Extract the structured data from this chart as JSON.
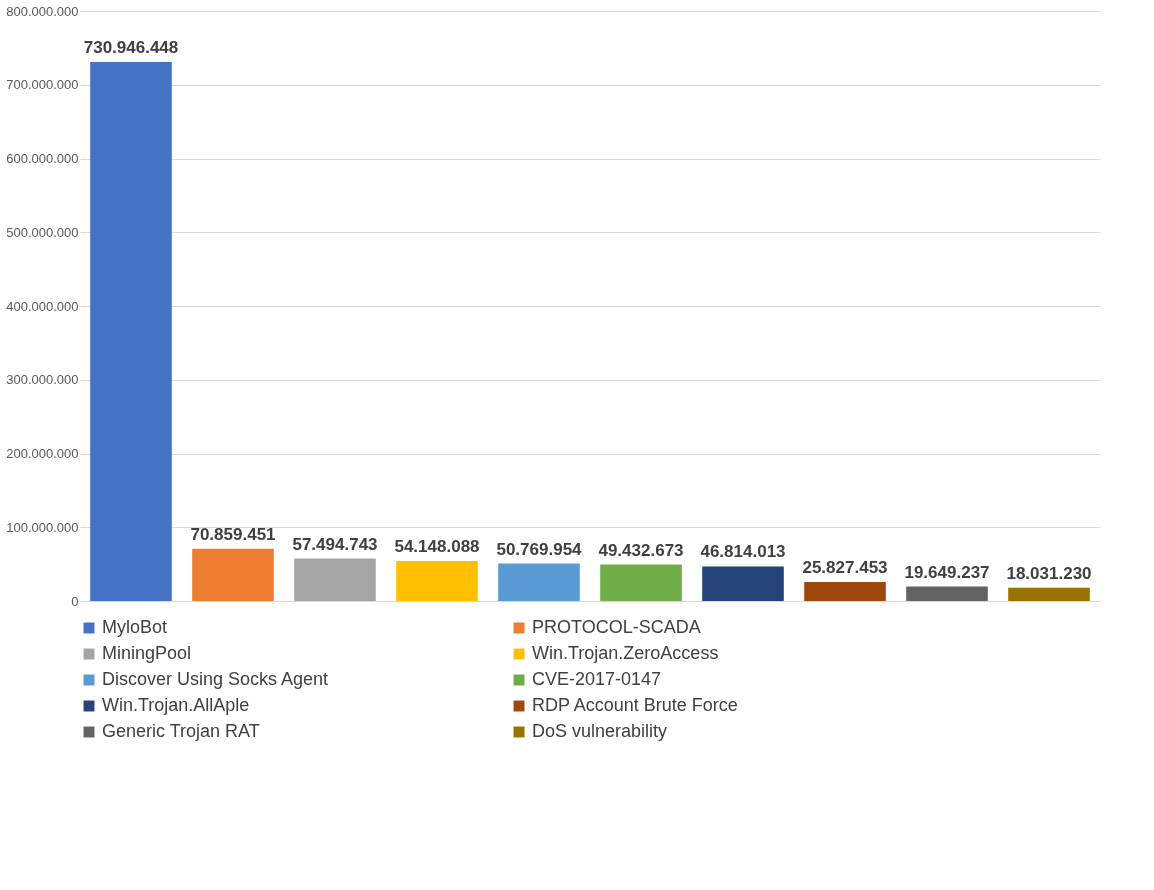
{
  "chart_data": {
    "type": "bar",
    "categories": [
      null,
      null,
      null,
      null,
      null,
      null,
      null,
      null,
      null,
      null
    ],
    "ylim": [
      0,
      800000000
    ],
    "yticks": [
      {
        "value": 0,
        "label": "0"
      },
      {
        "value": 100000000,
        "label": "100.000.000"
      },
      {
        "value": 200000000,
        "label": "200.000.000"
      },
      {
        "value": 300000000,
        "label": "300.000.000"
      },
      {
        "value": 400000000,
        "label": "400.000.000"
      },
      {
        "value": 500000000,
        "label": "500.000.000"
      },
      {
        "value": 600000000,
        "label": "600.000.000"
      },
      {
        "value": 700000000,
        "label": "700.000.000"
      },
      {
        "value": 800000000,
        "label": "800.000.000"
      }
    ],
    "grid": "y",
    "legend": "bottom",
    "tick_labels": "y",
    "series": [
      {
        "name": "MyloBot",
        "color": "#4472c4",
        "values": [
          730946448,
          null,
          null,
          null,
          null,
          null,
          null,
          null,
          null,
          null
        ],
        "value_labels": [
          "730.946.448",
          null,
          null,
          null,
          null,
          null,
          null,
          null,
          null,
          null
        ]
      },
      {
        "name": "PROTOCOL-SCADA",
        "color": "#ed7d31",
        "values": [
          null,
          70859451,
          null,
          null,
          null,
          null,
          null,
          null,
          null,
          null
        ],
        "value_labels": [
          null,
          "70.859.451",
          null,
          null,
          null,
          null,
          null,
          null,
          null,
          null
        ]
      },
      {
        "name": "MiningPool",
        "color": "#a5a5a5",
        "values": [
          null,
          null,
          57494743,
          null,
          null,
          null,
          null,
          null,
          null,
          null
        ],
        "value_labels": [
          null,
          null,
          "57.494.743",
          null,
          null,
          null,
          null,
          null,
          null,
          null
        ]
      },
      {
        "name": "Win.Trojan.ZeroAccess",
        "color": "#ffc000",
        "values": [
          null,
          null,
          null,
          54148088,
          null,
          null,
          null,
          null,
          null,
          null
        ],
        "value_labels": [
          null,
          null,
          null,
          "54.148.088",
          null,
          null,
          null,
          null,
          null,
          null
        ]
      },
      {
        "name": "Discover Using Socks Agent",
        "color": "#5b9bd5",
        "values": [
          null,
          null,
          null,
          null,
          50769954,
          null,
          null,
          null,
          null,
          null
        ],
        "value_labels": [
          null,
          null,
          null,
          null,
          "50.769.954",
          null,
          null,
          null,
          null,
          null
        ]
      },
      {
        "name": "CVE-2017-0147",
        "color": "#70ad47",
        "values": [
          null,
          null,
          null,
          null,
          null,
          49432673,
          null,
          null,
          null,
          null
        ],
        "value_labels": [
          null,
          null,
          null,
          null,
          null,
          "49.432.673",
          null,
          null,
          null,
          null
        ]
      },
      {
        "name": "Win.Trojan.AllAple",
        "color": "#264478",
        "values": [
          null,
          null,
          null,
          null,
          null,
          null,
          46814013,
          null,
          null,
          null
        ],
        "value_labels": [
          null,
          null,
          null,
          null,
          null,
          null,
          "46.814.013",
          null,
          null,
          null
        ]
      },
      {
        "name": "RDP Account Brute Force",
        "color": "#9e480e",
        "values": [
          null,
          null,
          null,
          null,
          null,
          null,
          null,
          25827453,
          null,
          null
        ],
        "value_labels": [
          null,
          null,
          null,
          null,
          null,
          null,
          null,
          "25.827.453",
          null,
          null
        ]
      },
      {
        "name": "Generic Trojan RAT",
        "color": "#636363",
        "values": [
          null,
          null,
          null,
          null,
          null,
          null,
          null,
          null,
          19649237,
          null
        ],
        "value_labels": [
          null,
          null,
          null,
          null,
          null,
          null,
          null,
          null,
          "19.649.237",
          null
        ]
      },
      {
        "name": "DoS vulnerability",
        "color": "#997300",
        "values": [
          null,
          null,
          null,
          null,
          null,
          null,
          null,
          null,
          null,
          18031230
        ],
        "value_labels": [
          null,
          null,
          null,
          null,
          null,
          null,
          null,
          null,
          null,
          "18.031.230"
        ]
      }
    ]
  }
}
